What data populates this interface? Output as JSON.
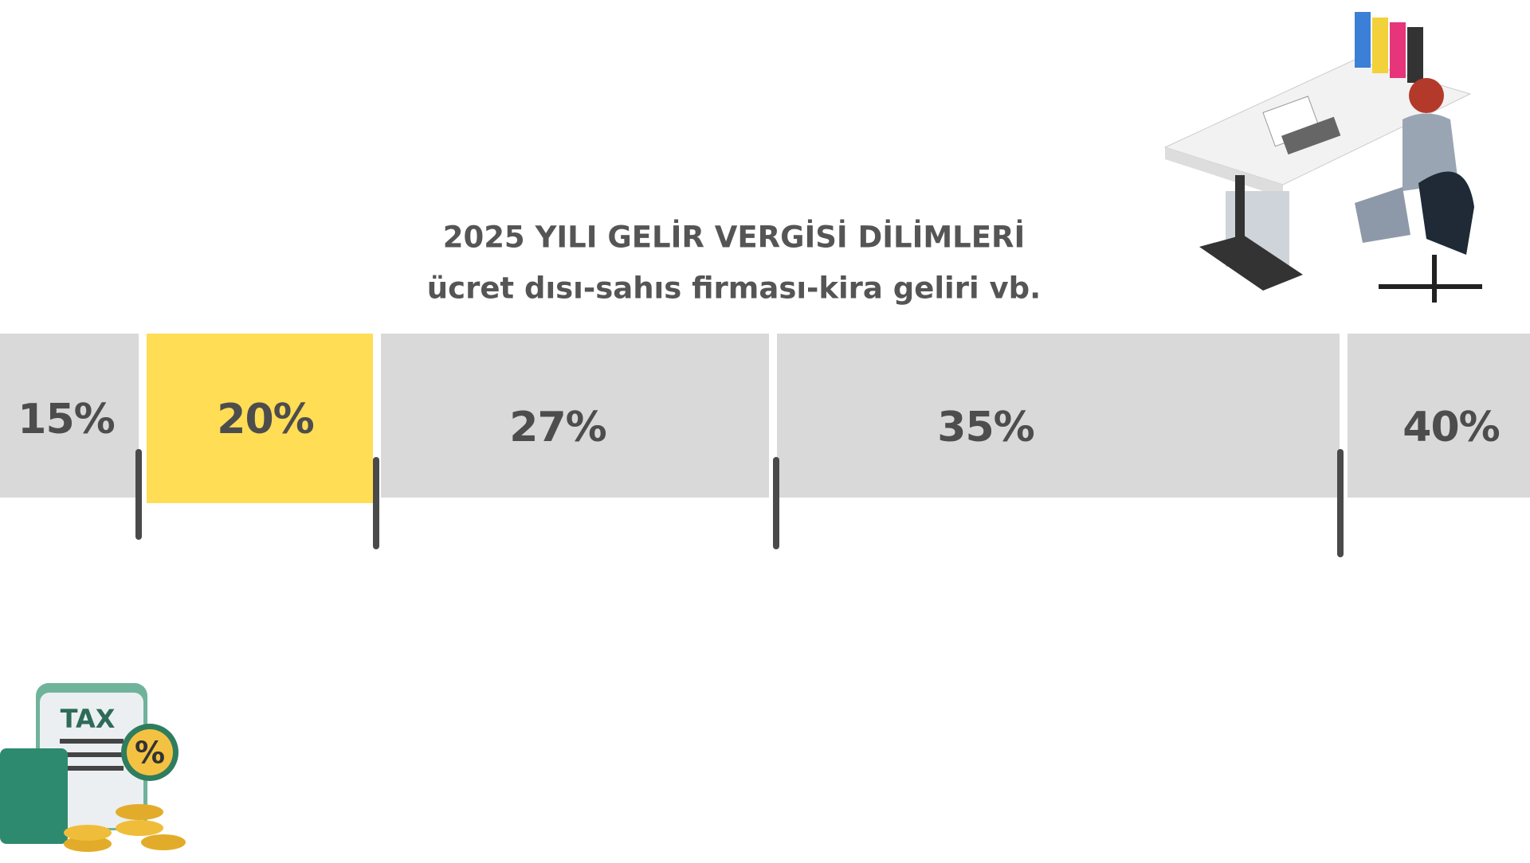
{
  "header": {
    "title": "2025 YILI GELİR VERGİSİ DİLİMLERİ",
    "subtitle": "ücret dısı-sahıs firması-kira geliri vb."
  },
  "brackets": [
    {
      "label": "15%"
    },
    {
      "label": "20%"
    },
    {
      "label": "27%"
    },
    {
      "label": "35%"
    },
    {
      "label": "40%"
    }
  ],
  "tax_icon": {
    "label": "TAX",
    "badge": "%"
  }
}
